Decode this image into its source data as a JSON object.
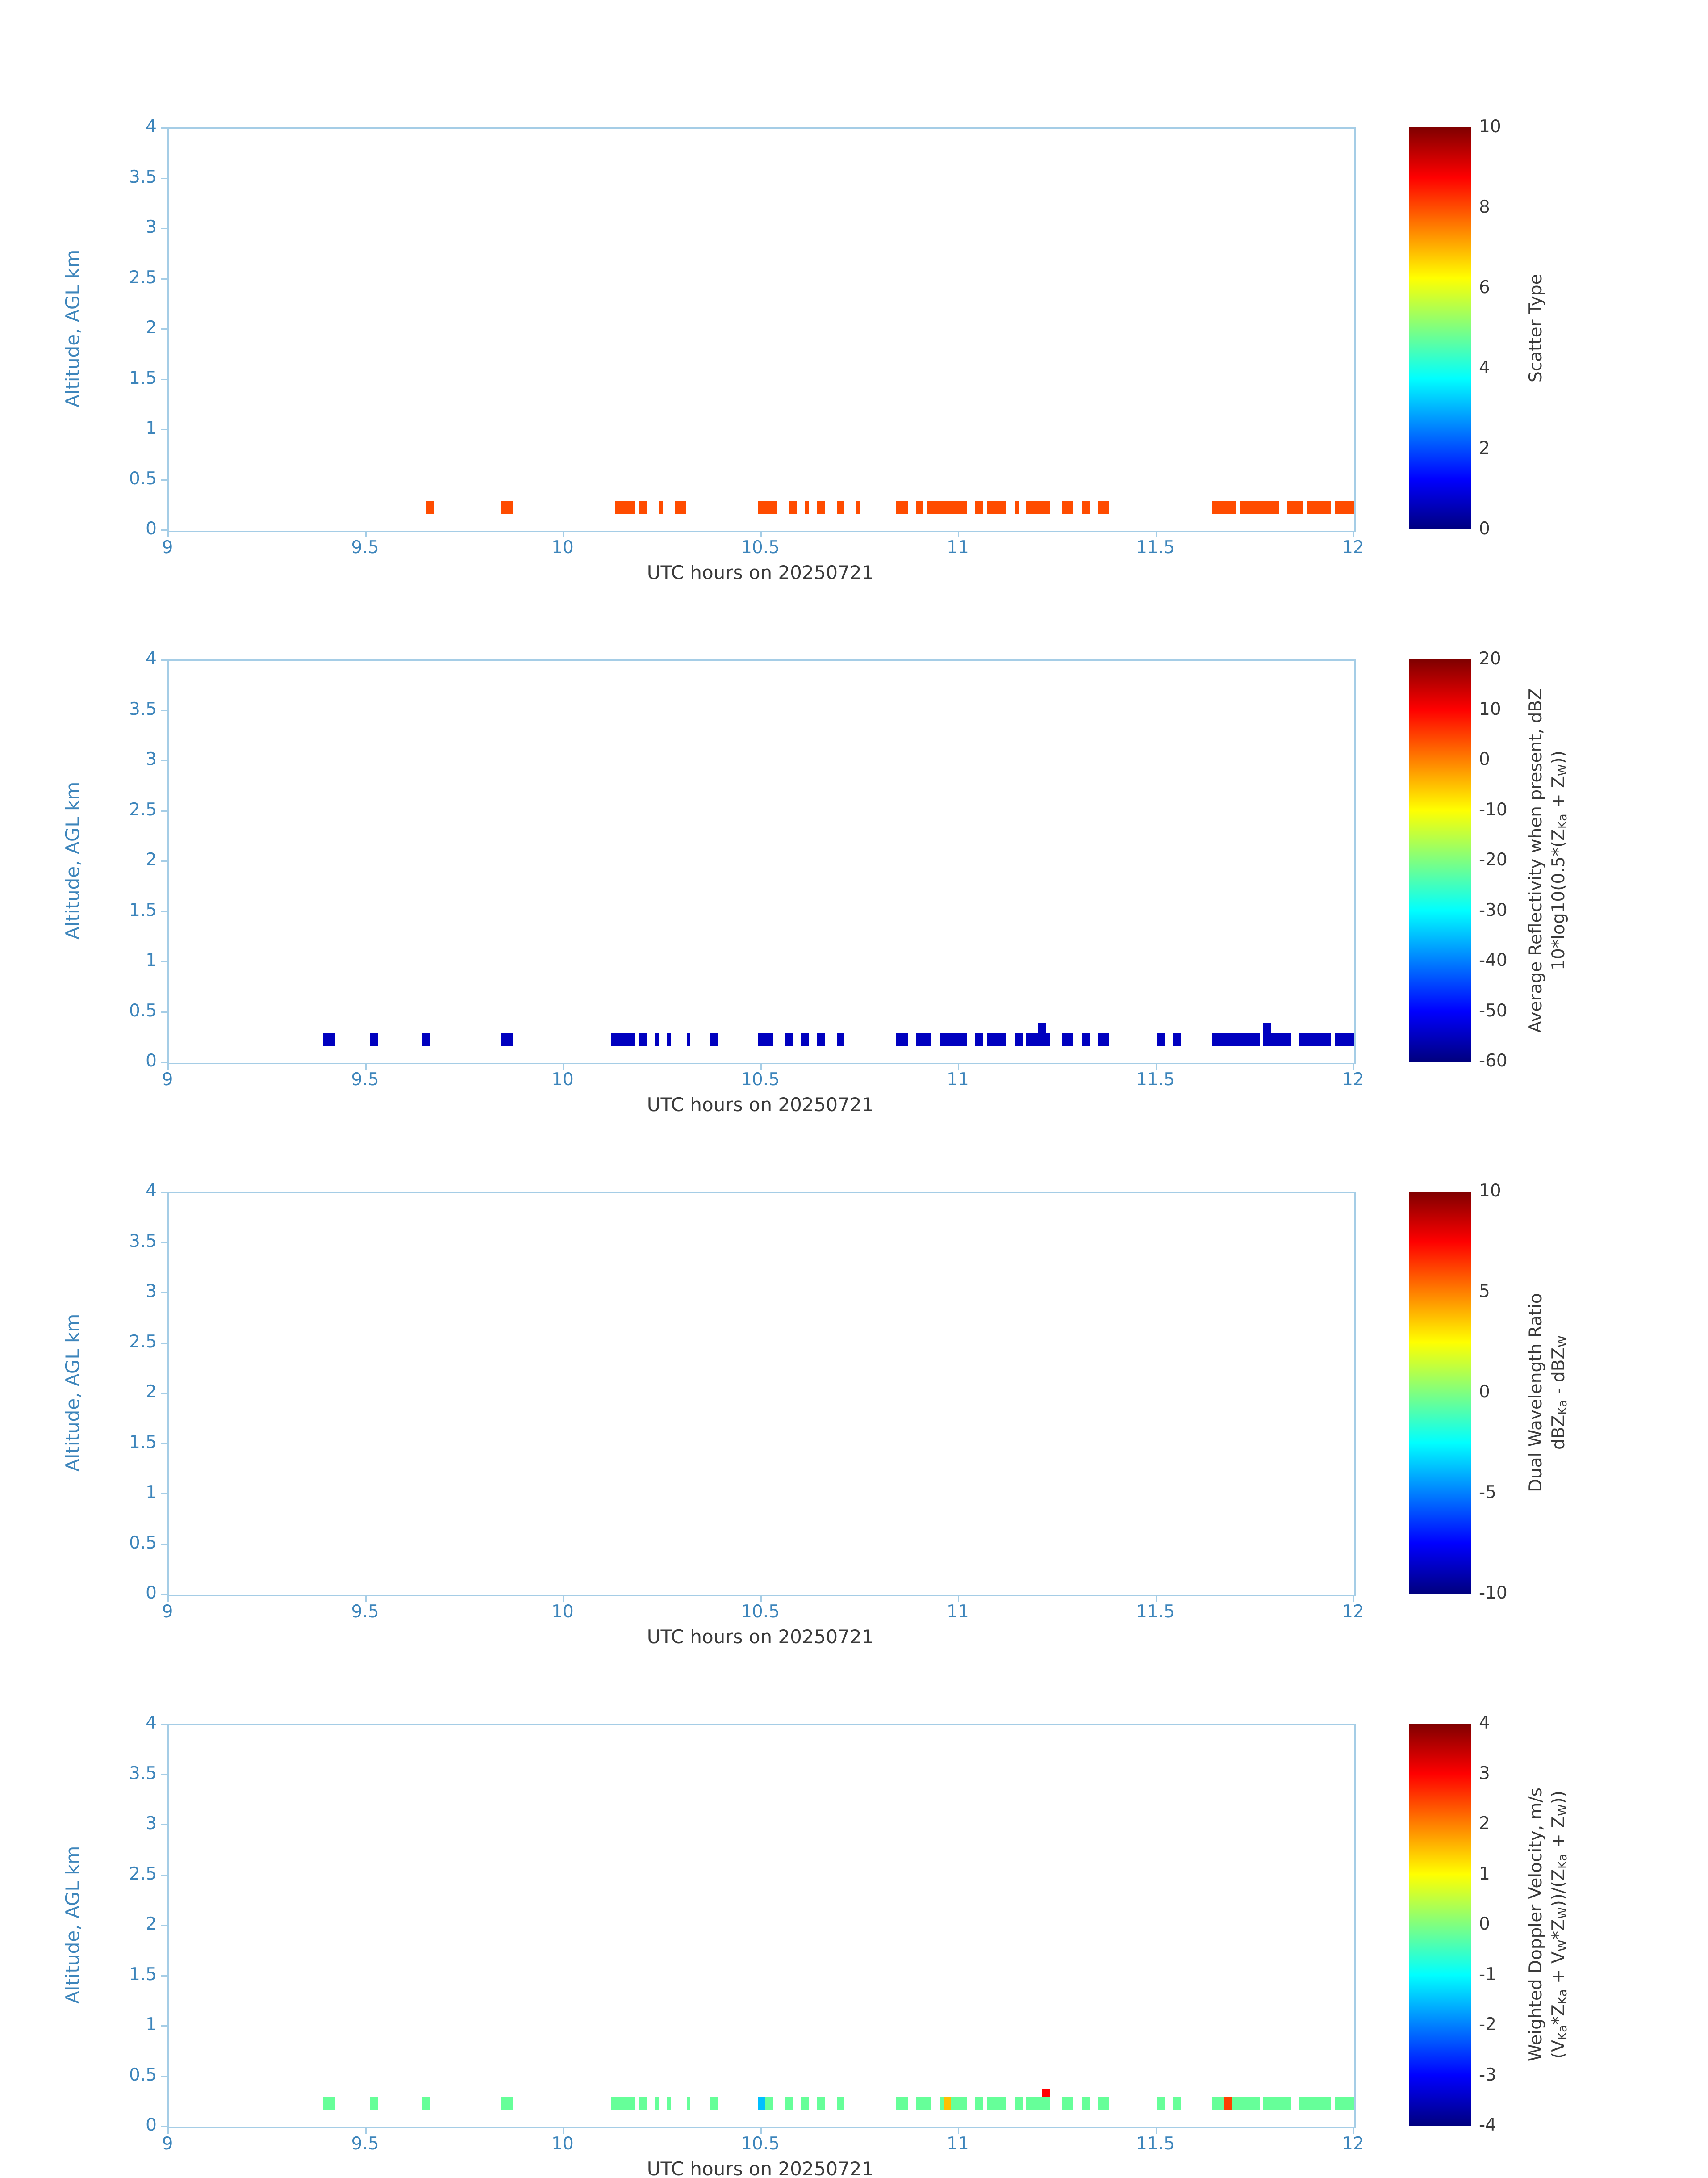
{
  "style": {
    "background": "#ffffff",
    "axis_color": "#a5cde6",
    "tick_label_color": "#3d85bb",
    "text_color": "#3a3a3a"
  },
  "segment_format": "[x_start_utc_hour, x_end_utc_hour, value, optional_alt_bottom_km, optional_alt_top_km]",
  "chart_data": [
    {
      "type": "scatter",
      "panel_name": "scatter-type",
      "xlabel": "UTC hours on 20250721",
      "ylabel": "Altitude, AGL km",
      "xlim": [
        9,
        12
      ],
      "ylim": [
        0,
        4
      ],
      "x_ticks": [
        9,
        9.5,
        10,
        10.5,
        11,
        11.5,
        12
      ],
      "x_tick_labels": [
        "9",
        "9.5",
        "10",
        "10.5",
        "11",
        "11.5",
        "12"
      ],
      "y_ticks": [
        0,
        0.5,
        1,
        1.5,
        2,
        2.5,
        3,
        3.5,
        4
      ],
      "y_tick_labels": [
        "0",
        "0.5",
        "1",
        "1.5",
        "2",
        "2.5",
        "3",
        "3.5",
        "4"
      ],
      "grid": false,
      "colorbar": {
        "title_lines": [
          "Scatter Type"
        ],
        "colormap": "jet",
        "range": [
          0,
          10
        ],
        "ticks": [
          0,
          2,
          4,
          6,
          8,
          10
        ],
        "tick_labels": [
          "0",
          "2",
          "4",
          "6",
          "8",
          "10"
        ],
        "position": "right"
      },
      "mark_altitude_km": [
        0.17,
        0.3
      ],
      "segments": [
        [
          9.65,
          9.67,
          8
        ],
        [
          9.84,
          9.87,
          8
        ],
        [
          10.13,
          10.18,
          8
        ],
        [
          10.19,
          10.21,
          8
        ],
        [
          10.24,
          10.25,
          8
        ],
        [
          10.28,
          10.31,
          8
        ],
        [
          10.49,
          10.54,
          8
        ],
        [
          10.57,
          10.59,
          8
        ],
        [
          10.61,
          10.62,
          8
        ],
        [
          10.64,
          10.66,
          8
        ],
        [
          10.69,
          10.71,
          8
        ],
        [
          10.74,
          10.75,
          8
        ],
        [
          10.84,
          10.87,
          8
        ],
        [
          10.89,
          10.91,
          8
        ],
        [
          10.92,
          11.02,
          8
        ],
        [
          11.04,
          11.06,
          8
        ],
        [
          11.07,
          11.12,
          8
        ],
        [
          11.14,
          11.15,
          8
        ],
        [
          11.17,
          11.23,
          8
        ],
        [
          11.26,
          11.29,
          8
        ],
        [
          11.31,
          11.33,
          8
        ],
        [
          11.35,
          11.38,
          8
        ],
        [
          11.64,
          11.7,
          8
        ],
        [
          11.71,
          11.81,
          8
        ],
        [
          11.83,
          11.87,
          8
        ],
        [
          11.88,
          11.94,
          8
        ],
        [
          11.95,
          12,
          8
        ]
      ]
    },
    {
      "type": "scatter",
      "panel_name": "average-reflectivity",
      "xlabel": "UTC hours on 20250721",
      "ylabel": "Altitude, AGL km",
      "xlim": [
        9,
        12
      ],
      "ylim": [
        0,
        4
      ],
      "x_ticks": [
        9,
        9.5,
        10,
        10.5,
        11,
        11.5,
        12
      ],
      "x_tick_labels": [
        "9",
        "9.5",
        "10",
        "10.5",
        "11",
        "11.5",
        "12"
      ],
      "y_ticks": [
        0,
        0.5,
        1,
        1.5,
        2,
        2.5,
        3,
        3.5,
        4
      ],
      "y_tick_labels": [
        "0",
        "0.5",
        "1",
        "1.5",
        "2",
        "2.5",
        "3",
        "3.5",
        "4"
      ],
      "grid": false,
      "colorbar": {
        "title_lines": [
          "Average Reflectivity when present, dBZ",
          "10*log10(0.5*(Z_{Ka} + Z_{W}))"
        ],
        "colormap": "jet",
        "range": [
          -60,
          20
        ],
        "ticks": [
          -60,
          -50,
          -40,
          -30,
          -20,
          -10,
          0,
          10,
          20
        ],
        "tick_labels": [
          "-60",
          "-50",
          "-40",
          "-30",
          "-20",
          "-10",
          "0",
          "10",
          "20"
        ],
        "position": "right"
      },
      "mark_altitude_km": [
        0.17,
        0.3
      ],
      "segments": [
        [
          9.39,
          9.42,
          -55
        ],
        [
          9.51,
          9.53,
          -55
        ],
        [
          9.64,
          9.66,
          -55
        ],
        [
          9.84,
          9.87,
          -55
        ],
        [
          10.12,
          10.18,
          -55
        ],
        [
          10.19,
          10.21,
          -55
        ],
        [
          10.23,
          10.24,
          -55
        ],
        [
          10.26,
          10.27,
          -55
        ],
        [
          10.31,
          10.32,
          -55
        ],
        [
          10.37,
          10.39,
          -55
        ],
        [
          10.49,
          10.53,
          -55
        ],
        [
          10.56,
          10.58,
          -55
        ],
        [
          10.6,
          10.62,
          -55
        ],
        [
          10.64,
          10.66,
          -55
        ],
        [
          10.69,
          10.71,
          -55
        ],
        [
          10.84,
          10.87,
          -55
        ],
        [
          10.89,
          10.93,
          -55
        ],
        [
          10.95,
          11.02,
          -55
        ],
        [
          11.04,
          11.06,
          -55
        ],
        [
          11.07,
          11.12,
          -55
        ],
        [
          11.14,
          11.16,
          -55
        ],
        [
          11.17,
          11.23,
          -55
        ],
        [
          11.2,
          11.22,
          -55,
          0.17,
          0.4
        ],
        [
          11.26,
          11.29,
          -55
        ],
        [
          11.31,
          11.33,
          -55
        ],
        [
          11.35,
          11.38,
          -55
        ],
        [
          11.5,
          11.52,
          -55
        ],
        [
          11.54,
          11.56,
          -55
        ],
        [
          11.64,
          11.76,
          -55
        ],
        [
          11.77,
          11.79,
          -55,
          0.17,
          0.4
        ],
        [
          11.77,
          11.84,
          -55
        ],
        [
          11.86,
          11.94,
          -55
        ],
        [
          11.95,
          12,
          -55
        ]
      ]
    },
    {
      "type": "scatter",
      "panel_name": "dual-wavelength-ratio",
      "xlabel": "UTC hours on 20250721",
      "ylabel": "Altitude, AGL km",
      "xlim": [
        9,
        12
      ],
      "ylim": [
        0,
        4
      ],
      "x_ticks": [
        9,
        9.5,
        10,
        10.5,
        11,
        11.5,
        12
      ],
      "x_tick_labels": [
        "9",
        "9.5",
        "10",
        "10.5",
        "11",
        "11.5",
        "12"
      ],
      "y_ticks": [
        0,
        0.5,
        1,
        1.5,
        2,
        2.5,
        3,
        3.5,
        4
      ],
      "y_tick_labels": [
        "0",
        "0.5",
        "1",
        "1.5",
        "2",
        "2.5",
        "3",
        "3.5",
        "4"
      ],
      "grid": false,
      "colorbar": {
        "title_lines": [
          "Dual Wavelength Ratio",
          "dBZ_{Ka} - dBZ_{W}"
        ],
        "colormap": "jet",
        "range": [
          -10,
          10
        ],
        "ticks": [
          -10,
          -5,
          0,
          5,
          10
        ],
        "tick_labels": [
          "-10",
          "-5",
          "0",
          "5",
          "10"
        ],
        "position": "right"
      },
      "mark_altitude_km": [
        0.17,
        0.3
      ],
      "segments": []
    },
    {
      "type": "scatter",
      "panel_name": "weighted-doppler-velocity",
      "xlabel": "UTC hours on 20250721",
      "ylabel": "Altitude, AGL km",
      "xlim": [
        9,
        12
      ],
      "ylim": [
        0,
        4
      ],
      "x_ticks": [
        9,
        9.5,
        10,
        10.5,
        11,
        11.5,
        12
      ],
      "x_tick_labels": [
        "9",
        "9.5",
        "10",
        "10.5",
        "11",
        "11.5",
        "12"
      ],
      "y_ticks": [
        0,
        0.5,
        1,
        1.5,
        2,
        2.5,
        3,
        3.5,
        4
      ],
      "y_tick_labels": [
        "0",
        "0.5",
        "1",
        "1.5",
        "2",
        "2.5",
        "3",
        "3.5",
        "4"
      ],
      "grid": false,
      "colorbar": {
        "title_lines": [
          "Weighted Doppler Velocity, m/s",
          "(V_{Ka}*Z_{Ka} + V_{W}*Z_{W}))/(Z_{Ka} + Z_{W}))"
        ],
        "colormap": "jet",
        "range": [
          -4,
          4
        ],
        "ticks": [
          -4,
          -3,
          -2,
          -1,
          0,
          1,
          2,
          3,
          4
        ],
        "tick_labels": [
          "-4",
          "-3",
          "-2",
          "-1",
          "0",
          "1",
          "2",
          "3",
          "4"
        ],
        "position": "right"
      },
      "mark_altitude_km": [
        0.17,
        0.3
      ],
      "segments": [
        [
          9.39,
          9.42,
          -0.2
        ],
        [
          9.51,
          9.53,
          -0.2
        ],
        [
          9.64,
          9.66,
          -0.2
        ],
        [
          9.84,
          9.87,
          -0.2
        ],
        [
          10.12,
          10.18,
          -0.2
        ],
        [
          10.19,
          10.21,
          -0.2
        ],
        [
          10.23,
          10.24,
          -0.2
        ],
        [
          10.26,
          10.27,
          -0.2
        ],
        [
          10.31,
          10.32,
          -0.2
        ],
        [
          10.37,
          10.39,
          -0.2
        ],
        [
          10.49,
          10.51,
          -1.5
        ],
        [
          10.51,
          10.53,
          -0.2
        ],
        [
          10.56,
          10.58,
          -0.2
        ],
        [
          10.6,
          10.62,
          -0.2
        ],
        [
          10.64,
          10.66,
          -0.2
        ],
        [
          10.69,
          10.71,
          -0.2
        ],
        [
          10.84,
          10.87,
          -0.2
        ],
        [
          10.89,
          10.93,
          -0.2
        ],
        [
          10.95,
          11.02,
          -0.2
        ],
        [
          10.96,
          10.98,
          1.5
        ],
        [
          11.04,
          11.06,
          -0.2
        ],
        [
          11.07,
          11.12,
          -0.2
        ],
        [
          11.14,
          11.16,
          -0.2
        ],
        [
          11.17,
          11.23,
          -0.2
        ],
        [
          11.21,
          11.23,
          3,
          0.3,
          0.38
        ],
        [
          11.26,
          11.29,
          -0.2
        ],
        [
          11.31,
          11.33,
          -0.2
        ],
        [
          11.35,
          11.38,
          -0.2
        ],
        [
          11.5,
          11.52,
          -0.2
        ],
        [
          11.54,
          11.56,
          -0.2
        ],
        [
          11.64,
          11.76,
          -0.2
        ],
        [
          11.67,
          11.69,
          2.5
        ],
        [
          11.77,
          11.84,
          -0.2
        ],
        [
          11.86,
          11.94,
          -0.2
        ],
        [
          11.95,
          12,
          -0.2
        ]
      ]
    }
  ]
}
